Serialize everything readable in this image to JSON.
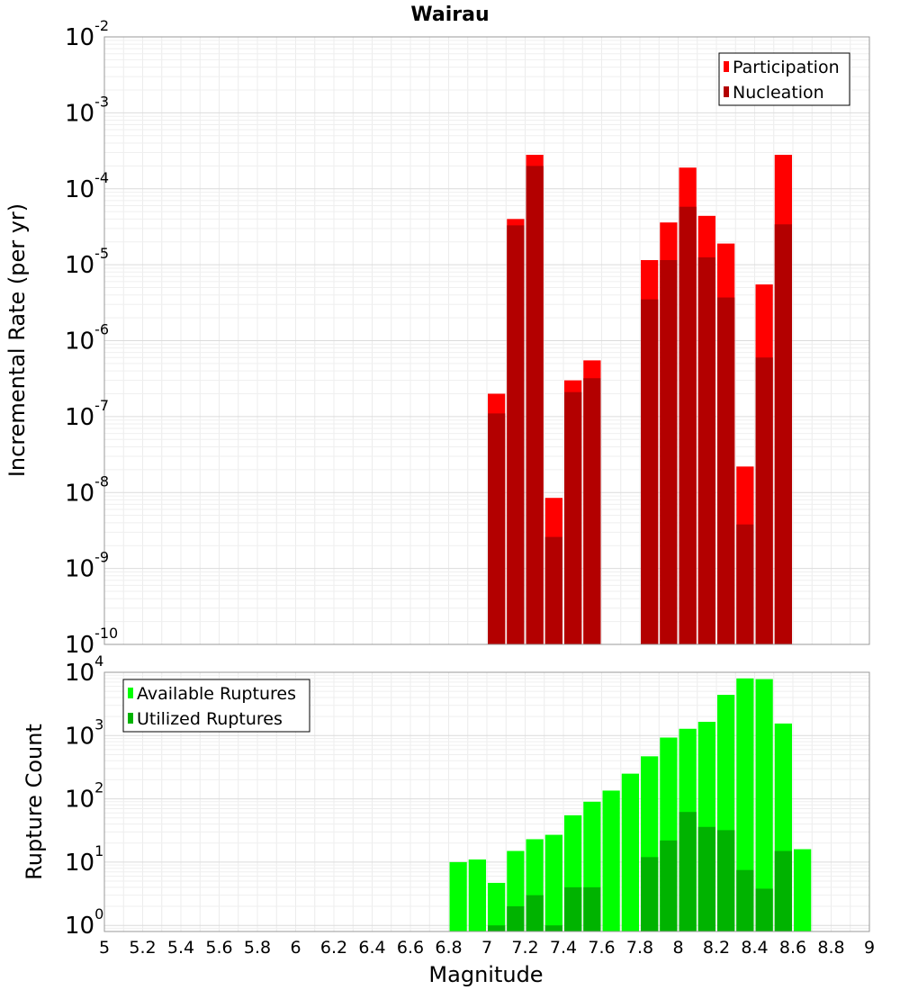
{
  "chart_data": [
    {
      "type": "bar",
      "title": "Wairau",
      "xlabel": "",
      "ylabel": "Incremental Rate (per yr)",
      "yscale": "log",
      "ylim": [
        1e-10,
        0.01
      ],
      "xlim": [
        5,
        9
      ],
      "grid": true,
      "legend_position": "top-right",
      "bin_width": 0.1,
      "ytick_labels": [
        {
          "base": "10",
          "exp": "-10"
        },
        {
          "base": "10",
          "exp": "-9"
        },
        {
          "base": "10",
          "exp": "-8"
        },
        {
          "base": "10",
          "exp": "-7"
        },
        {
          "base": "10",
          "exp": "-6"
        },
        {
          "base": "10",
          "exp": "-5"
        },
        {
          "base": "10",
          "exp": "-4"
        },
        {
          "base": "10",
          "exp": "-3"
        },
        {
          "base": "10",
          "exp": "-2"
        }
      ],
      "x": [
        7.05,
        7.15,
        7.25,
        7.35,
        7.45,
        7.55,
        7.85,
        7.95,
        8.05,
        8.15,
        8.25,
        8.35,
        8.45,
        8.55
      ],
      "series": [
        {
          "name": "Participation",
          "color": "#ff0000",
          "values": [
            2e-07,
            4e-05,
            0.00028,
            8.5e-09,
            3e-07,
            5.5e-07,
            1.15e-05,
            3.6e-05,
            0.00019,
            4.4e-05,
            1.9e-05,
            2.2e-08,
            5.5e-06,
            0.00028
          ]
        },
        {
          "name": "Nucleation",
          "color": "#b30000",
          "values": [
            1.1e-07,
            3.3e-05,
            0.0002,
            2.6e-09,
            2.1e-07,
            3.2e-07,
            3.5e-06,
            1.15e-05,
            5.8e-05,
            1.25e-05,
            3.7e-06,
            3.8e-09,
            6e-07,
            3.4e-05
          ]
        }
      ]
    },
    {
      "type": "bar",
      "title": "",
      "xlabel": "Magnitude",
      "ylabel": "Rupture Count",
      "yscale": "log",
      "ylim": [
        0.8,
        10000
      ],
      "xlim": [
        5,
        9
      ],
      "grid": true,
      "legend_position": "top-left",
      "bin_width": 0.1,
      "ytick_labels": [
        {
          "base": "10",
          "exp": "0"
        },
        {
          "base": "10",
          "exp": "1"
        },
        {
          "base": "10",
          "exp": "2"
        },
        {
          "base": "10",
          "exp": "3"
        },
        {
          "base": "10",
          "exp": "4"
        }
      ],
      "xticks": [
        "5",
        "5.2",
        "5.4",
        "5.6",
        "5.8",
        "6",
        "6.2",
        "6.4",
        "6.6",
        "6.8",
        "7",
        "7.2",
        "7.4",
        "7.6",
        "7.8",
        "8",
        "8.2",
        "8.4",
        "8.6",
        "8.8",
        "9"
      ],
      "x": [
        6.85,
        6.95,
        7.05,
        7.15,
        7.25,
        7.35,
        7.45,
        7.55,
        7.65,
        7.75,
        7.85,
        7.95,
        8.05,
        8.15,
        8.25,
        8.35,
        8.45,
        8.55,
        8.65
      ],
      "series": [
        {
          "name": "Available Ruptures",
          "color": "#00ff00",
          "values": [
            10,
            11,
            4.7,
            15,
            23,
            27,
            55,
            90,
            135,
            250,
            470,
            930,
            1280,
            1650,
            4400,
            8000,
            7800,
            1550,
            16
          ]
        },
        {
          "name": "Utilized Ruptures",
          "color": "#00b300",
          "values": [
            0,
            0,
            1,
            2,
            3,
            1,
            4,
            4,
            0,
            0,
            12,
            22,
            62,
            36,
            32,
            7.5,
            3.8,
            15,
            0
          ]
        }
      ]
    }
  ]
}
